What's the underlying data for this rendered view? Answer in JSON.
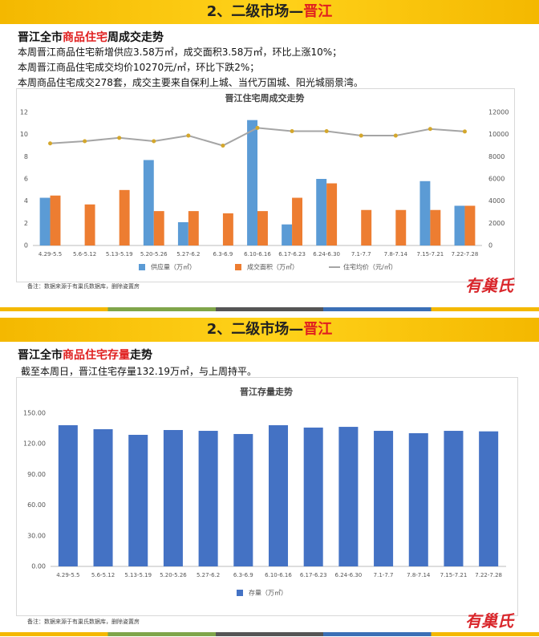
{
  "slides": [
    {
      "header": {
        "prefix": "2、二级市场—",
        "highlight": "晋江"
      },
      "subtitle": {
        "a": "晋江全市",
        "b": "商品住宅",
        "c": "周成交走势"
      },
      "lines": [
        "本周晋江商品住宅新增供应3.58万㎡，成交面积3.58万㎡，环比上涨10%；",
        "本周晋江商品住宅成交均价10270元/㎡，环比下跌2%；",
        "本周商品住宅成交278套，成交主要来自保利上城、当代万国城、阳光城丽景湾。"
      ],
      "note": "备注：数据来源于有巢氏数据库，删除姿置房",
      "brand": "有巢氏"
    },
    {
      "header": {
        "prefix": "2、二级市场—",
        "highlight": "晋江"
      },
      "subtitle": {
        "a": "晋江全市",
        "b": "商品住宅存量",
        "c": "走势"
      },
      "lines": [
        "截至本周日，晋江住宅存量132.19万㎡，与上周持平。"
      ],
      "note": "备注：数据来源于有巢氏数据库，删除姿置房",
      "brand": "有巢氏"
    }
  ],
  "chart_data": [
    {
      "type": "bar",
      "title": "晋江住宅周成交走势",
      "categories": [
        "4.29-5.5",
        "5.6-5.12",
        "5.13-5.19",
        "5.20-5.26",
        "5.27-6.2",
        "6.3-6.9",
        "6.10-6.16",
        "6.17-6.23",
        "6.24-6.30",
        "7.1-7.7",
        "7.8-7.14",
        "7.15-7.21",
        "7.22-7.28"
      ],
      "series": [
        {
          "name": "供应量（万㎡）",
          "color": "#5b9bd5",
          "values": [
            4.3,
            null,
            null,
            7.7,
            2.1,
            null,
            11.3,
            1.9,
            6.0,
            null,
            null,
            5.8,
            3.58
          ]
        },
        {
          "name": "成交面积（万㎡）",
          "color": "#ed7d31",
          "values": [
            4.5,
            3.7,
            5.0,
            3.1,
            3.1,
            2.9,
            3.1,
            4.3,
            5.6,
            3.2,
            3.2,
            3.2,
            3.58
          ]
        },
        {
          "name": "住宅均价（元/㎡）",
          "color": "#a5a5a5",
          "type": "line",
          "axis": "y2",
          "values": [
            9200,
            9400,
            9700,
            9400,
            9900,
            9000,
            10600,
            10300,
            10300,
            9900,
            9900,
            10500,
            10270
          ]
        }
      ],
      "ylim": [
        0,
        12
      ],
      "yticks": [
        0,
        2,
        4,
        6,
        8,
        10,
        12
      ],
      "y2lim": [
        0,
        12000
      ],
      "y2ticks": [
        0,
        2000,
        4000,
        6000,
        8000,
        10000,
        12000
      ],
      "grid": false,
      "legend": "bottom"
    },
    {
      "type": "bar",
      "title": "晋江存量走势",
      "categories": [
        "4.29-5.5",
        "5.6-5.12",
        "5.13-5.19",
        "5.20-5.26",
        "5.27-6.2",
        "6.3-6.9",
        "6.10-6.16",
        "6.17-6.23",
        "6.24-6.30",
        "7.1-7.7",
        "7.8-7.14",
        "7.15-7.21",
        "7.22-7.28"
      ],
      "series": [
        {
          "name": "存量（万㎡）",
          "color": "#4472c4",
          "values": [
            138.2,
            134.3,
            128.8,
            133.5,
            132.7,
            129.6,
            138.2,
            135.9,
            136.6,
            132.7,
            130.4,
            132.7,
            132.19
          ]
        }
      ],
      "ylim": [
        0,
        150
      ],
      "yticks": [
        {
          "value": 0,
          "label": "0.00"
        },
        {
          "value": 30,
          "label": "30.00"
        },
        {
          "value": 60,
          "label": "60.00"
        },
        {
          "value": 90,
          "label": "90.00"
        },
        {
          "value": 120,
          "label": "120.00"
        },
        {
          "value": 150,
          "label": "150.00"
        }
      ],
      "grid": false,
      "legend": "bottom"
    }
  ]
}
